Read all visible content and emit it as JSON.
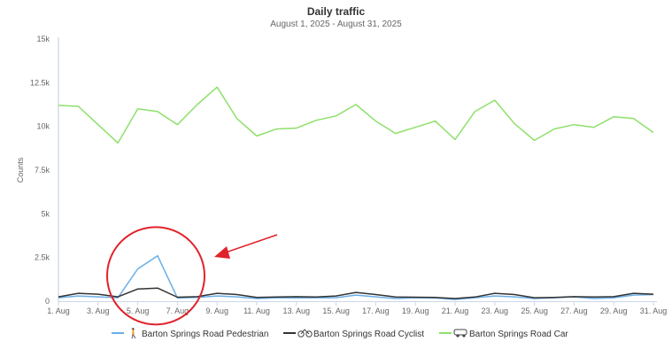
{
  "chart_data": {
    "type": "line",
    "title": "Daily traffic",
    "subtitle": "August 1, 2025 - August 31, 2025",
    "ylabel": "Counts",
    "xlabel": "",
    "ylim": [
      0,
      15000
    ],
    "yticks": [
      0,
      2500,
      5000,
      7500,
      10000,
      12500,
      15000
    ],
    "ytick_labels": [
      "0",
      "2.5k",
      "5k",
      "7.5k",
      "10k",
      "12.5k",
      "15k"
    ],
    "x": [
      1,
      2,
      3,
      4,
      5,
      6,
      7,
      8,
      9,
      10,
      11,
      12,
      13,
      14,
      15,
      16,
      17,
      18,
      19,
      20,
      21,
      22,
      23,
      24,
      25,
      26,
      27,
      28,
      29,
      30,
      31
    ],
    "xtick_values": [
      1,
      3,
      5,
      7,
      9,
      11,
      13,
      15,
      17,
      19,
      21,
      23,
      25,
      27,
      29,
      31
    ],
    "xtick_labels": [
      "1. Aug",
      "3. Aug",
      "5. Aug",
      "7. Aug",
      "9. Aug",
      "11. Aug",
      "13. Aug",
      "15. Aug",
      "17. Aug",
      "19. Aug",
      "21. Aug",
      "23. Aug",
      "25. Aug",
      "27. Aug",
      "29. Aug",
      "31. Aug"
    ],
    "legend_position": "bottom",
    "series": [
      {
        "name": "Barton Springs Road Pedestrian",
        "color": "#6aaee6",
        "icon": "pedestrian-icon",
        "values": [
          200,
          300,
          250,
          200,
          1850,
          2600,
          180,
          220,
          300,
          250,
          150,
          200,
          180,
          200,
          200,
          350,
          250,
          150,
          200,
          180,
          100,
          200,
          300,
          250,
          150,
          200,
          250,
          150,
          200,
          350,
          380
        ]
      },
      {
        "name": "Barton Springs Road Cyclist",
        "color": "#333333",
        "icon": "bicycle-icon",
        "values": [
          250,
          450,
          400,
          250,
          700,
          750,
          230,
          260,
          450,
          380,
          220,
          240,
          260,
          240,
          300,
          500,
          380,
          240,
          230,
          220,
          150,
          240,
          450,
          380,
          200,
          220,
          260,
          240,
          260,
          450,
          400
        ]
      },
      {
        "name": "Barton Springs Road Car",
        "color": "#8ee06a",
        "icon": "car-icon",
        "values": [
          11200,
          11150,
          10100,
          9050,
          11000,
          10850,
          10100,
          11250,
          12250,
          10450,
          9450,
          9850,
          9900,
          10350,
          10600,
          11250,
          10300,
          9600,
          9950,
          10300,
          9250,
          10850,
          11500,
          10150,
          9200,
          9850,
          10100,
          9950,
          10550,
          10450,
          9650
        ]
      }
    ],
    "annotations": {
      "circle": {
        "color": "#e0232b",
        "center_x": 6,
        "center_y": 1300
      },
      "arrow": {
        "color": "#e0232b"
      }
    }
  }
}
